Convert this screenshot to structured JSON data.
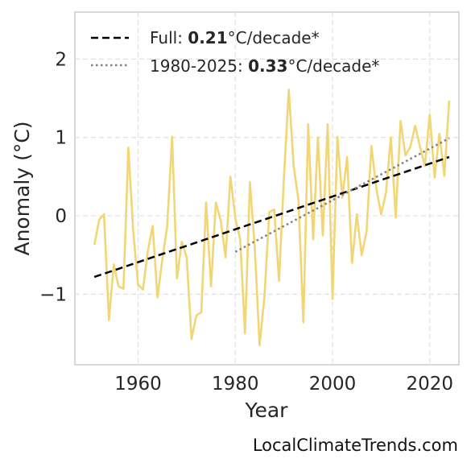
{
  "chart_data": {
    "type": "line",
    "title": "",
    "xlabel": "Year",
    "ylabel": "Anomaly (°C)",
    "xlim": [
      1947,
      2026
    ],
    "ylim": [
      -1.9,
      2.6
    ],
    "xticks": [
      1960,
      1980,
      2000,
      2020
    ],
    "xtick_labels": [
      "1960",
      "1980",
      "2000",
      "2020"
    ],
    "yticks": [
      -1,
      0,
      1,
      2
    ],
    "ytick_labels": [
      "−1",
      "0",
      "1",
      "2"
    ],
    "grid": true,
    "legend_position": "top-left",
    "x": [
      1951,
      1952,
      1953,
      1954,
      1955,
      1956,
      1957,
      1958,
      1959,
      1960,
      1961,
      1962,
      1963,
      1964,
      1965,
      1966,
      1967,
      1968,
      1969,
      1970,
      1971,
      1972,
      1973,
      1974,
      1975,
      1976,
      1977,
      1978,
      1979,
      1980,
      1981,
      1982,
      1983,
      1984,
      1985,
      1986,
      1987,
      1988,
      1989,
      1990,
      1991,
      1992,
      1993,
      1994,
      1995,
      1996,
      1997,
      1998,
      1999,
      2000,
      2001,
      2002,
      2003,
      2004,
      2005,
      2006,
      2007,
      2008,
      2009,
      2010,
      2011,
      2012,
      2013,
      2014,
      2015,
      2016,
      2017,
      2018,
      2019,
      2020,
      2021,
      2022,
      2023,
      2024
    ],
    "series": [
      {
        "values": [
          -0.37,
          -0.05,
          0.02,
          -1.33,
          -0.62,
          -0.9,
          -0.93,
          0.87,
          -0.2,
          -0.88,
          -0.94,
          -0.45,
          -0.13,
          -1.04,
          -0.55,
          -0.13,
          1.01,
          -0.8,
          -0.33,
          -0.53,
          -1.57,
          -1.27,
          -1.23,
          0.17,
          -0.9,
          0.17,
          -0.06,
          -0.53,
          0.5,
          -0.03,
          -0.3,
          -1.5,
          0.43,
          -0.4,
          -1.65,
          -1.03,
          0.05,
          0.08,
          -0.83,
          0.48,
          1.61,
          0.64,
          0.2,
          -1.36,
          1.17,
          -0.3,
          1.0,
          -0.25,
          1.17,
          -1.06,
          1.01,
          0.23,
          0.75,
          -0.6,
          0.02,
          -0.5,
          -0.2,
          0.89,
          0.35,
          0.02,
          0.3,
          1.0,
          -0.02,
          1.21,
          0.77,
          0.88,
          1.15,
          0.88,
          0.64,
          1.29,
          0.49,
          1.05,
          0.51,
          1.47
        ],
        "color": "#f2d675"
      }
    ],
    "trendlines": [
      {
        "x": [
          1951,
          2024
        ],
        "y": [
          -0.78,
          0.75
        ],
        "style": "dashed",
        "color": "#000000",
        "label_prefix": "Full: ",
        "label_value": "0.21",
        "label_suffix": "°C/decade*"
      },
      {
        "x": [
          1980,
          2024
        ],
        "y": [
          -0.46,
          0.99
        ],
        "style": "dotted",
        "color": "#808080",
        "label_prefix": "1980-2025: ",
        "label_value": "0.33",
        "label_suffix": "°C/decade*"
      }
    ],
    "credit": "LocalClimateTrends.com"
  }
}
